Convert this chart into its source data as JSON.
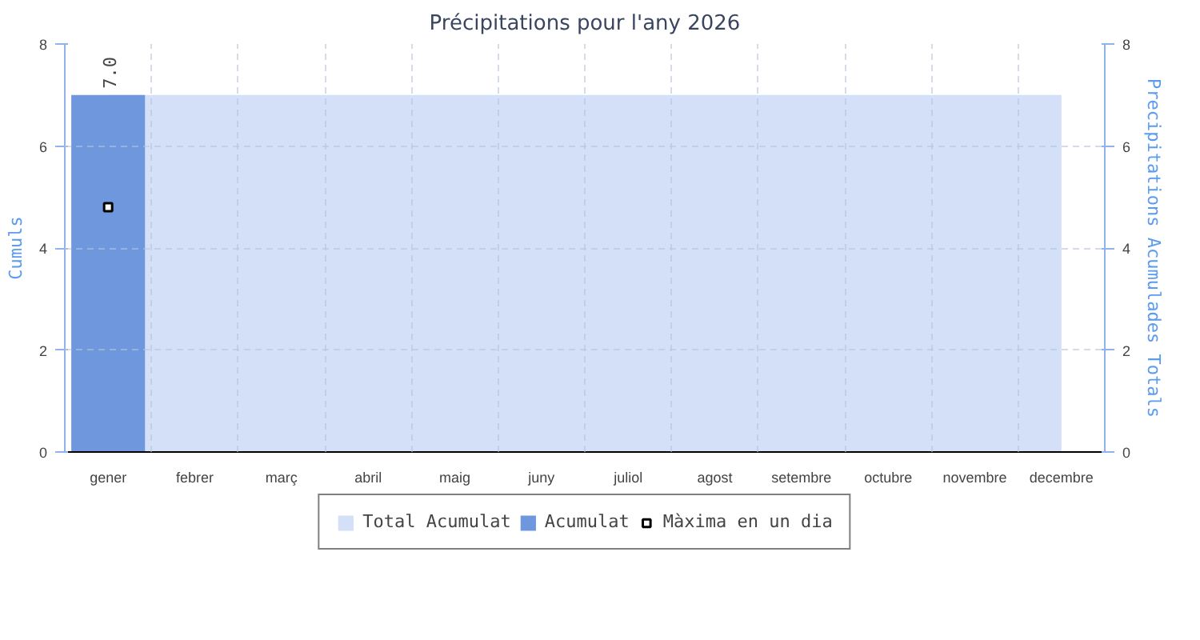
{
  "chart_data": {
    "type": "bar",
    "title": "Précipitations pour l'any 2026",
    "ylabel": "Cumuls",
    "y2label": "Precipitations Acumulades Totals",
    "categories": [
      "gener",
      "febrer",
      "març",
      "abril",
      "maig",
      "juny",
      "juliol",
      "agost",
      "setembre",
      "octubre",
      "novembre",
      "decembre"
    ],
    "series": [
      {
        "name": "Total Acumulat",
        "type": "area",
        "color": "#d3e0f7",
        "values": [
          7.0,
          7.0,
          7.0,
          7.0,
          7.0,
          7.0,
          7.0,
          7.0,
          7.0,
          7.0,
          7.0,
          7.0
        ]
      },
      {
        "name": "Acumulat",
        "color": "#6f97dd",
        "values": [
          7.0,
          null,
          null,
          null,
          null,
          null,
          null,
          null,
          null,
          null,
          null,
          null
        ],
        "value_labels": [
          "7.0",
          null,
          null,
          null,
          null,
          null,
          null,
          null,
          null,
          null,
          null,
          null
        ]
      },
      {
        "name": "Màxima en un dia",
        "type": "scatter",
        "marker": "square",
        "color": "#000000",
        "values": [
          4.8,
          null,
          null,
          null,
          null,
          null,
          null,
          null,
          null,
          null,
          null,
          null
        ]
      }
    ],
    "ylim": [
      0,
      8
    ],
    "yticks": [
      0,
      2,
      4,
      6,
      8
    ],
    "y2lim": [
      0,
      8
    ],
    "y2ticks": [
      0,
      2,
      4,
      6,
      8
    ],
    "grid": true,
    "legend": "bottom"
  }
}
